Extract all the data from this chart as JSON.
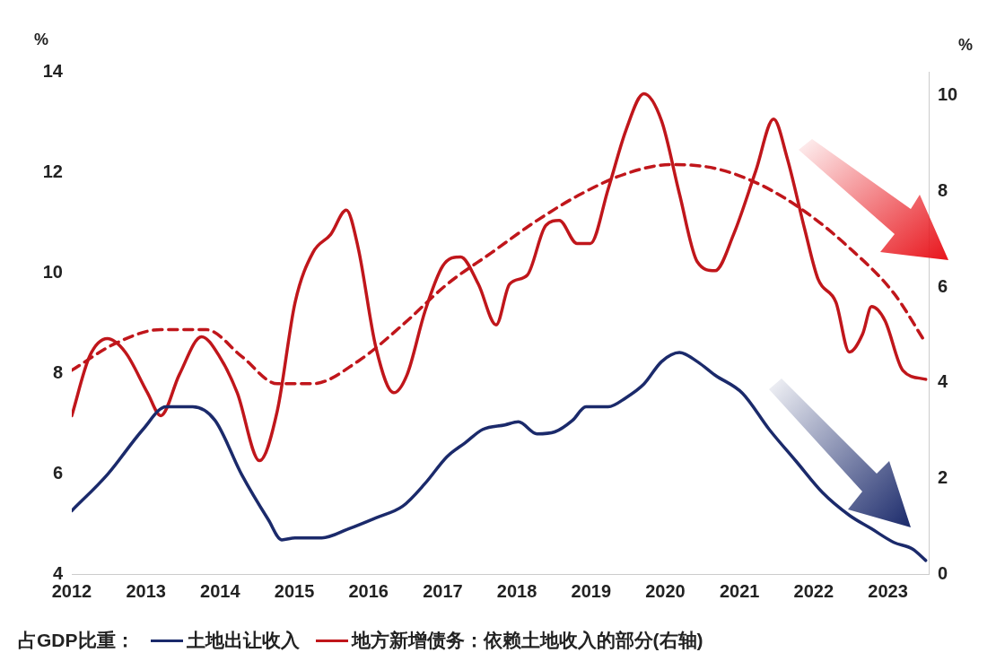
{
  "chart_data": {
    "type": "line",
    "ylabel": "%",
    "y2label": "%",
    "legend_title": "占GDP比重：",
    "legend": "bottom",
    "grid": false,
    "marker": "none",
    "xlim": [
      2012,
      2023.55
    ],
    "xticks": [
      2012,
      2013,
      2014,
      2015,
      2016,
      2017,
      2018,
      2019,
      2020,
      2021,
      2022,
      2023
    ],
    "ylim": [
      4,
      14
    ],
    "yticks": [
      4,
      6,
      8,
      10,
      12,
      14
    ],
    "y2lim": [
      0,
      10.5
    ],
    "y2ticks": [
      0,
      2,
      4,
      6,
      8,
      10
    ],
    "series": [
      {
        "name": "土地出让收入",
        "color": "#1b2a6b",
        "line_style": "solid",
        "x": [
          2012.0,
          2012.48,
          2012.96,
          2013.27,
          2013.63,
          2013.93,
          2014.29,
          2014.65,
          2014.83,
          2015.01,
          2015.37,
          2015.73,
          2016.1,
          2016.46,
          2016.76,
          2017.06,
          2017.3,
          2017.54,
          2017.84,
          2018.02,
          2018.27,
          2018.51,
          2018.75,
          2018.93,
          2019.23,
          2019.47,
          2019.71,
          2019.95,
          2020.19,
          2020.43,
          2020.67,
          2021.04,
          2021.4,
          2021.76,
          2022.12,
          2022.48,
          2022.78,
          2023.08,
          2023.33,
          2023.51
        ],
        "values": [
          5.26,
          5.98,
          6.88,
          7.33,
          7.33,
          7.06,
          5.98,
          5.08,
          4.68,
          4.72,
          4.72,
          4.9,
          5.12,
          5.35,
          5.8,
          6.34,
          6.61,
          6.88,
          6.97,
          7.03,
          6.79,
          6.83,
          7.06,
          7.33,
          7.33,
          7.51,
          7.78,
          8.23,
          8.41,
          8.23,
          7.96,
          7.6,
          6.88,
          6.25,
          5.62,
          5.17,
          4.9,
          4.63,
          4.5,
          4.27
        ]
      },
      {
        "name": "地方新增债务：依赖土地收入的部分(右轴)",
        "color": "#c0161b",
        "axis": "y2",
        "line_style": "solid",
        "x": [
          2012.0,
          2012.24,
          2012.48,
          2012.72,
          2013.02,
          2013.2,
          2013.45,
          2013.75,
          2013.99,
          2014.23,
          2014.53,
          2014.77,
          2015.01,
          2015.25,
          2015.49,
          2015.7,
          2015.86,
          2016.1,
          2016.34,
          2016.52,
          2016.76,
          2017.0,
          2017.24,
          2017.48,
          2017.72,
          2017.9,
          2018.14,
          2018.39,
          2018.57,
          2018.81,
          2018.99,
          2019.23,
          2019.47,
          2019.71,
          2019.95,
          2020.19,
          2020.43,
          2020.67,
          2020.92,
          2021.22,
          2021.46,
          2021.64,
          2021.88,
          2022.06,
          2022.3,
          2022.48,
          2022.66,
          2022.78,
          2022.96,
          2023.2,
          2023.51
        ],
        "values": [
          3.31,
          4.55,
          4.92,
          4.64,
          3.79,
          3.31,
          4.17,
          4.96,
          4.55,
          3.79,
          2.37,
          3.41,
          5.68,
          6.72,
          7.1,
          7.61,
          6.82,
          4.73,
          3.79,
          4.17,
          5.49,
          6.44,
          6.63,
          6.06,
          5.21,
          6.06,
          6.25,
          7.29,
          7.39,
          6.91,
          6.91,
          8.05,
          9.28,
          10.04,
          9.47,
          7.95,
          6.53,
          6.34,
          7.1,
          8.43,
          9.51,
          8.71,
          7.2,
          6.16,
          5.68,
          4.64,
          5.02,
          5.59,
          5.3,
          4.26,
          4.07
        ]
      },
      {
        "color": "#c0161b",
        "axis": "y2",
        "line_style": "dashed",
        "x": [
          2012.0,
          2012.6,
          2013.2,
          2013.81,
          2014.29,
          2014.77,
          2015.25,
          2015.86,
          2016.46,
          2017.06,
          2017.66,
          2018.27,
          2018.87,
          2019.47,
          2020.07,
          2020.67,
          2021.28,
          2021.88,
          2022.48,
          2023.08,
          2023.51
        ],
        "values": [
          4.26,
          4.83,
          5.11,
          5.11,
          4.55,
          3.98,
          3.98,
          4.45,
          5.21,
          6.06,
          6.72,
          7.39,
          7.95,
          8.37,
          8.56,
          8.48,
          8.14,
          7.58,
          6.82,
          5.87,
          4.83
        ]
      }
    ]
  }
}
